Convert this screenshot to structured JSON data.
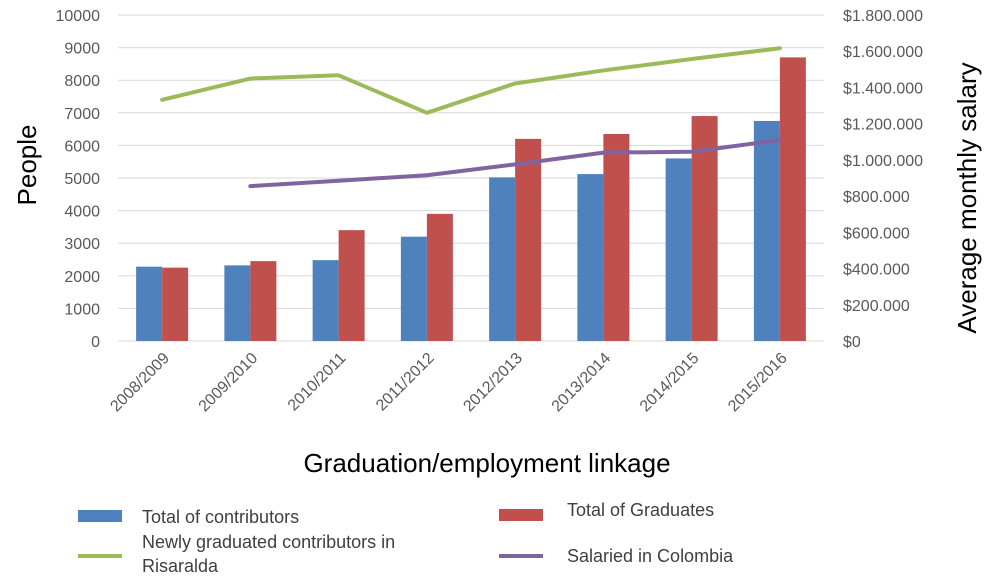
{
  "chart_data": {
    "type": "bar",
    "categories": [
      "2008/2009",
      "2009/2010",
      "2010/2011",
      "2011/2012",
      "2012/2013",
      "2013/2014",
      "2014/2015",
      "2015/2016"
    ],
    "xlabel": "Graduation/employment linkage",
    "ylabel": "People",
    "y2label": "Average monthly salary",
    "ylim": [
      0,
      10000
    ],
    "y2lim": [
      0,
      1800000
    ],
    "yticks": [
      "0",
      "1000",
      "2000",
      "3000",
      "4000",
      "5000",
      "6000",
      "7000",
      "8000",
      "9000",
      "10000"
    ],
    "y2ticks": [
      "$0",
      "$200.000",
      "$400.000",
      "$600.000",
      "$800.000",
      "$1.000.000",
      "$1.200.000",
      "$1.400.000",
      "$1.600.000",
      "$1.800.000"
    ],
    "grid": true,
    "legend_position": "bottom",
    "series": [
      {
        "name": "Total of contributors",
        "kind": "bar",
        "axis": "left",
        "color": "#4F81BD",
        "values": [
          2280,
          2320,
          2480,
          3200,
          5020,
          5120,
          5600,
          6750
        ]
      },
      {
        "name": "Total of Graduates",
        "kind": "bar",
        "axis": "left",
        "color": "#C0504D",
        "values": [
          2250,
          2450,
          3400,
          3900,
          6200,
          6350,
          6900,
          8700
        ]
      },
      {
        "name": "Newly graduated contributors in Risaralda",
        "kind": "line",
        "axis": "left",
        "color": "#9BBB59",
        "values": [
          7400,
          8050,
          8150,
          7000,
          7900,
          8300,
          8650,
          8980
        ]
      },
      {
        "name": "Salaried in Colombia",
        "kind": "line",
        "axis": "right",
        "color": "#8064A2",
        "values": [
          null,
          855000,
          885000,
          915000,
          975000,
          1040000,
          1045000,
          1110000
        ]
      }
    ],
    "legend": [
      {
        "name": "Total of contributors",
        "lines": [
          "Total of contributors"
        ],
        "swatch": "bar",
        "color": "#4F81BD",
        "col": 0,
        "row": 0
      },
      {
        "name": "Total of Graduates",
        "lines": [
          "Total of Graduates"
        ],
        "swatch": "bar",
        "color": "#C0504D",
        "col": 1,
        "row": 0
      },
      {
        "name": "Newly graduated contributors in Risaralda",
        "lines": [
          "Newly graduated contributors in",
          "Risaralda"
        ],
        "swatch": "line",
        "color": "#9BBB59",
        "col": 0,
        "row": 1
      },
      {
        "name": "Salaried in Colombia",
        "lines": [
          "Salaried in Colombia"
        ],
        "swatch": "line",
        "color": "#8064A2",
        "col": 1,
        "row": 1
      }
    ]
  }
}
